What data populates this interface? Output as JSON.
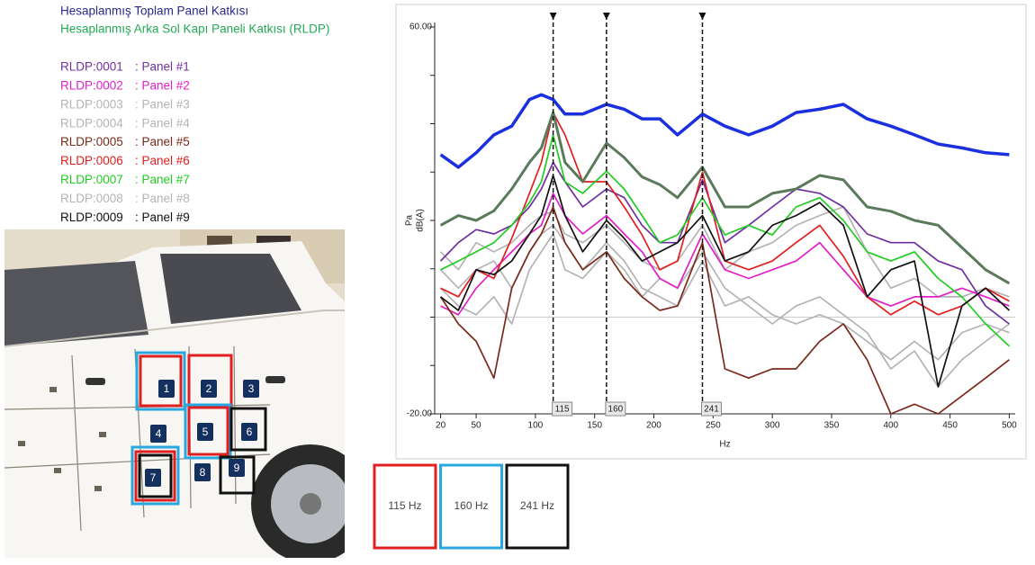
{
  "chart_data": {
    "type": "line",
    "y_label_unit": "Pa",
    "y_label": "dB(A)",
    "x_label": "Hz",
    "x": [
      20,
      35,
      50,
      65,
      80,
      95,
      105,
      115,
      125,
      140,
      160,
      175,
      190,
      205,
      220,
      241,
      260,
      280,
      300,
      320,
      340,
      360,
      380,
      400,
      420,
      440,
      460,
      480,
      500
    ],
    "xlim": [
      15,
      505
    ],
    "xticks": [
      20,
      50,
      100,
      150,
      200,
      250,
      300,
      350,
      400,
      450,
      500
    ],
    "ylim": [
      -20,
      60
    ],
    "yticks": [
      {
        "value": -20,
        "label": "-20.00"
      },
      {
        "value": 60,
        "label": "60.00"
      }
    ],
    "yminorticks": [
      -10,
      0,
      10,
      20,
      30,
      40,
      50
    ],
    "hline": 0,
    "cursors": [
      115,
      160,
      241
    ],
    "series": [
      {
        "name": "Hesaplanmış Toplam Panel Katkısı",
        "color": "#1a2fe0",
        "text_color": "#2a2a8a",
        "values": [
          33.6,
          31,
          34,
          37.7,
          39.5,
          45,
          46,
          45,
          42,
          42,
          44,
          43,
          41,
          41,
          37.7,
          42,
          39.5,
          37.7,
          39.5,
          42.3,
          43,
          44,
          41,
          39.5,
          37.7,
          35.8,
          35,
          34,
          33.6
        ]
      },
      {
        "name": "Hesaplanmış Arka Sol Kapı Paneli Katkısı (RLDP)",
        "color": "#5b7a5b",
        "text_color": "#22aa55",
        "values": [
          19,
          21,
          20,
          22,
          26.5,
          32,
          35,
          42.3,
          32,
          28,
          36,
          33,
          29,
          27.4,
          24.7,
          31,
          22.8,
          22.8,
          25.6,
          26.5,
          29.3,
          28.4,
          22.8,
          21.9,
          20,
          19,
          14.4,
          9.8,
          7
        ]
      },
      {
        "code": "RLDP:0001",
        "name": ": Panel #1",
        "color": "#7030a0",
        "values": [
          11.6,
          15.4,
          18.1,
          17.2,
          19,
          22.8,
          26.5,
          32,
          28,
          22.8,
          26.5,
          24.7,
          19,
          15.4,
          15.4,
          28.4,
          15.4,
          19,
          22.8,
          26.5,
          25.6,
          22.8,
          17.2,
          15.4,
          15.4,
          11.6,
          9.8,
          2.3,
          -1.4
        ]
      },
      {
        "code": "RLDP:0002",
        "name": ": Panel #2",
        "color": "#e020c8",
        "values": [
          2.3,
          0.5,
          6,
          9.8,
          13.5,
          17.2,
          19,
          25.6,
          21,
          17.2,
          21,
          17.2,
          13.5,
          8,
          6,
          17.2,
          9.8,
          8,
          9.8,
          11.6,
          15.4,
          9.8,
          4.2,
          2.3,
          4.2,
          4.2,
          6,
          4.2,
          2.3
        ]
      },
      {
        "code": "RLDP:0003",
        "name": ": Panel #3",
        "color": "#b4b4b4",
        "values": [
          9.8,
          6,
          9.8,
          11.6,
          6,
          13.5,
          17.2,
          19,
          15.4,
          9.8,
          15.4,
          11.6,
          6,
          4.2,
          2.3,
          11.6,
          2.3,
          4.2,
          0.5,
          -1.4,
          0.5,
          -1.4,
          -5,
          -8.8,
          -5,
          -8.8,
          -3.2,
          -1.4,
          -3.2
        ]
      },
      {
        "code": "RLDP:0004",
        "name": ": Panel #4",
        "color": "#b4b4b4",
        "values": [
          6,
          2.3,
          0.5,
          4.2,
          -1.4,
          9.8,
          13.5,
          17.2,
          9.8,
          8,
          13.5,
          9.8,
          4.2,
          8,
          6,
          13.5,
          6,
          2.3,
          -1.4,
          2.3,
          4.2,
          0.5,
          -3.2,
          -10.7,
          -7,
          -14.4,
          -8.8,
          -5,
          -1.4
        ]
      },
      {
        "code": "RLDP:0005",
        "name": ": Panel #5",
        "color": "#7a2a1a",
        "values": [
          4.2,
          -1.4,
          -5,
          -12.6,
          6,
          13.5,
          17.2,
          22.8,
          15.4,
          9.8,
          13.5,
          8,
          4.2,
          1.4,
          2.3,
          15.4,
          -10.7,
          -12.6,
          -10.7,
          -10.7,
          -5,
          -1.4,
          -8.8,
          -20,
          -18,
          -20,
          -16.3,
          -12.6,
          -8.8
        ]
      },
      {
        "code": "RLDP:0006",
        "name": ": Panel #6",
        "color": "#e02020",
        "values": [
          6,
          4.2,
          9.8,
          8,
          16.3,
          25.6,
          32,
          42.3,
          37.7,
          28,
          28,
          22.8,
          17,
          9.8,
          11.6,
          30,
          11.6,
          9.8,
          11.6,
          15.4,
          19,
          12.6,
          4.2,
          0.5,
          3.3,
          0.5,
          2.3,
          6,
          3.3
        ]
      },
      {
        "code": "RLDP:0007",
        "name": ": Panel #7",
        "color": "#22cc22",
        "values": [
          9.8,
          11.6,
          13.5,
          15.4,
          19,
          23.7,
          28,
          37.7,
          28,
          25.6,
          30.2,
          26.5,
          21,
          15.4,
          17,
          24.7,
          17,
          19,
          17,
          22.8,
          24.7,
          20,
          13.5,
          11.6,
          13.5,
          8,
          4.2,
          -1.4,
          -6
        ]
      },
      {
        "code": "RLDP:0008",
        "name": ": Panel #8",
        "color": "#b4b4b4",
        "values": [
          13.5,
          9.8,
          15.4,
          13.5,
          15.4,
          19,
          21,
          21.9,
          17.2,
          15.4,
          19,
          15.4,
          11.6,
          9.8,
          11.6,
          19,
          9.8,
          13.5,
          15.4,
          19,
          21,
          22.8,
          13.5,
          6,
          8,
          4.2,
          4.2,
          6,
          4.2
        ]
      },
      {
        "code": "RLDP:0009",
        "name": ": Panel #9",
        "color": "#111111",
        "values": [
          4.2,
          1.4,
          9.8,
          8.8,
          11.6,
          17.2,
          21,
          29.3,
          21,
          13.5,
          20,
          16.3,
          11.6,
          13.5,
          15.4,
          21,
          11.6,
          13.5,
          19,
          21,
          23.7,
          19,
          4.2,
          9.8,
          11.6,
          -14.4,
          2.3,
          6,
          1.4
        ]
      }
    ]
  },
  "photo": {
    "panels": [
      "1",
      "2",
      "3",
      "4",
      "5",
      "6",
      "7",
      "8",
      "9"
    ]
  },
  "cursor_legend": [
    {
      "label": "115 Hz",
      "color": "#e02020"
    },
    {
      "label": "160 Hz",
      "color": "#29a8e0"
    },
    {
      "label": "241 Hz",
      "color": "#111111"
    }
  ]
}
